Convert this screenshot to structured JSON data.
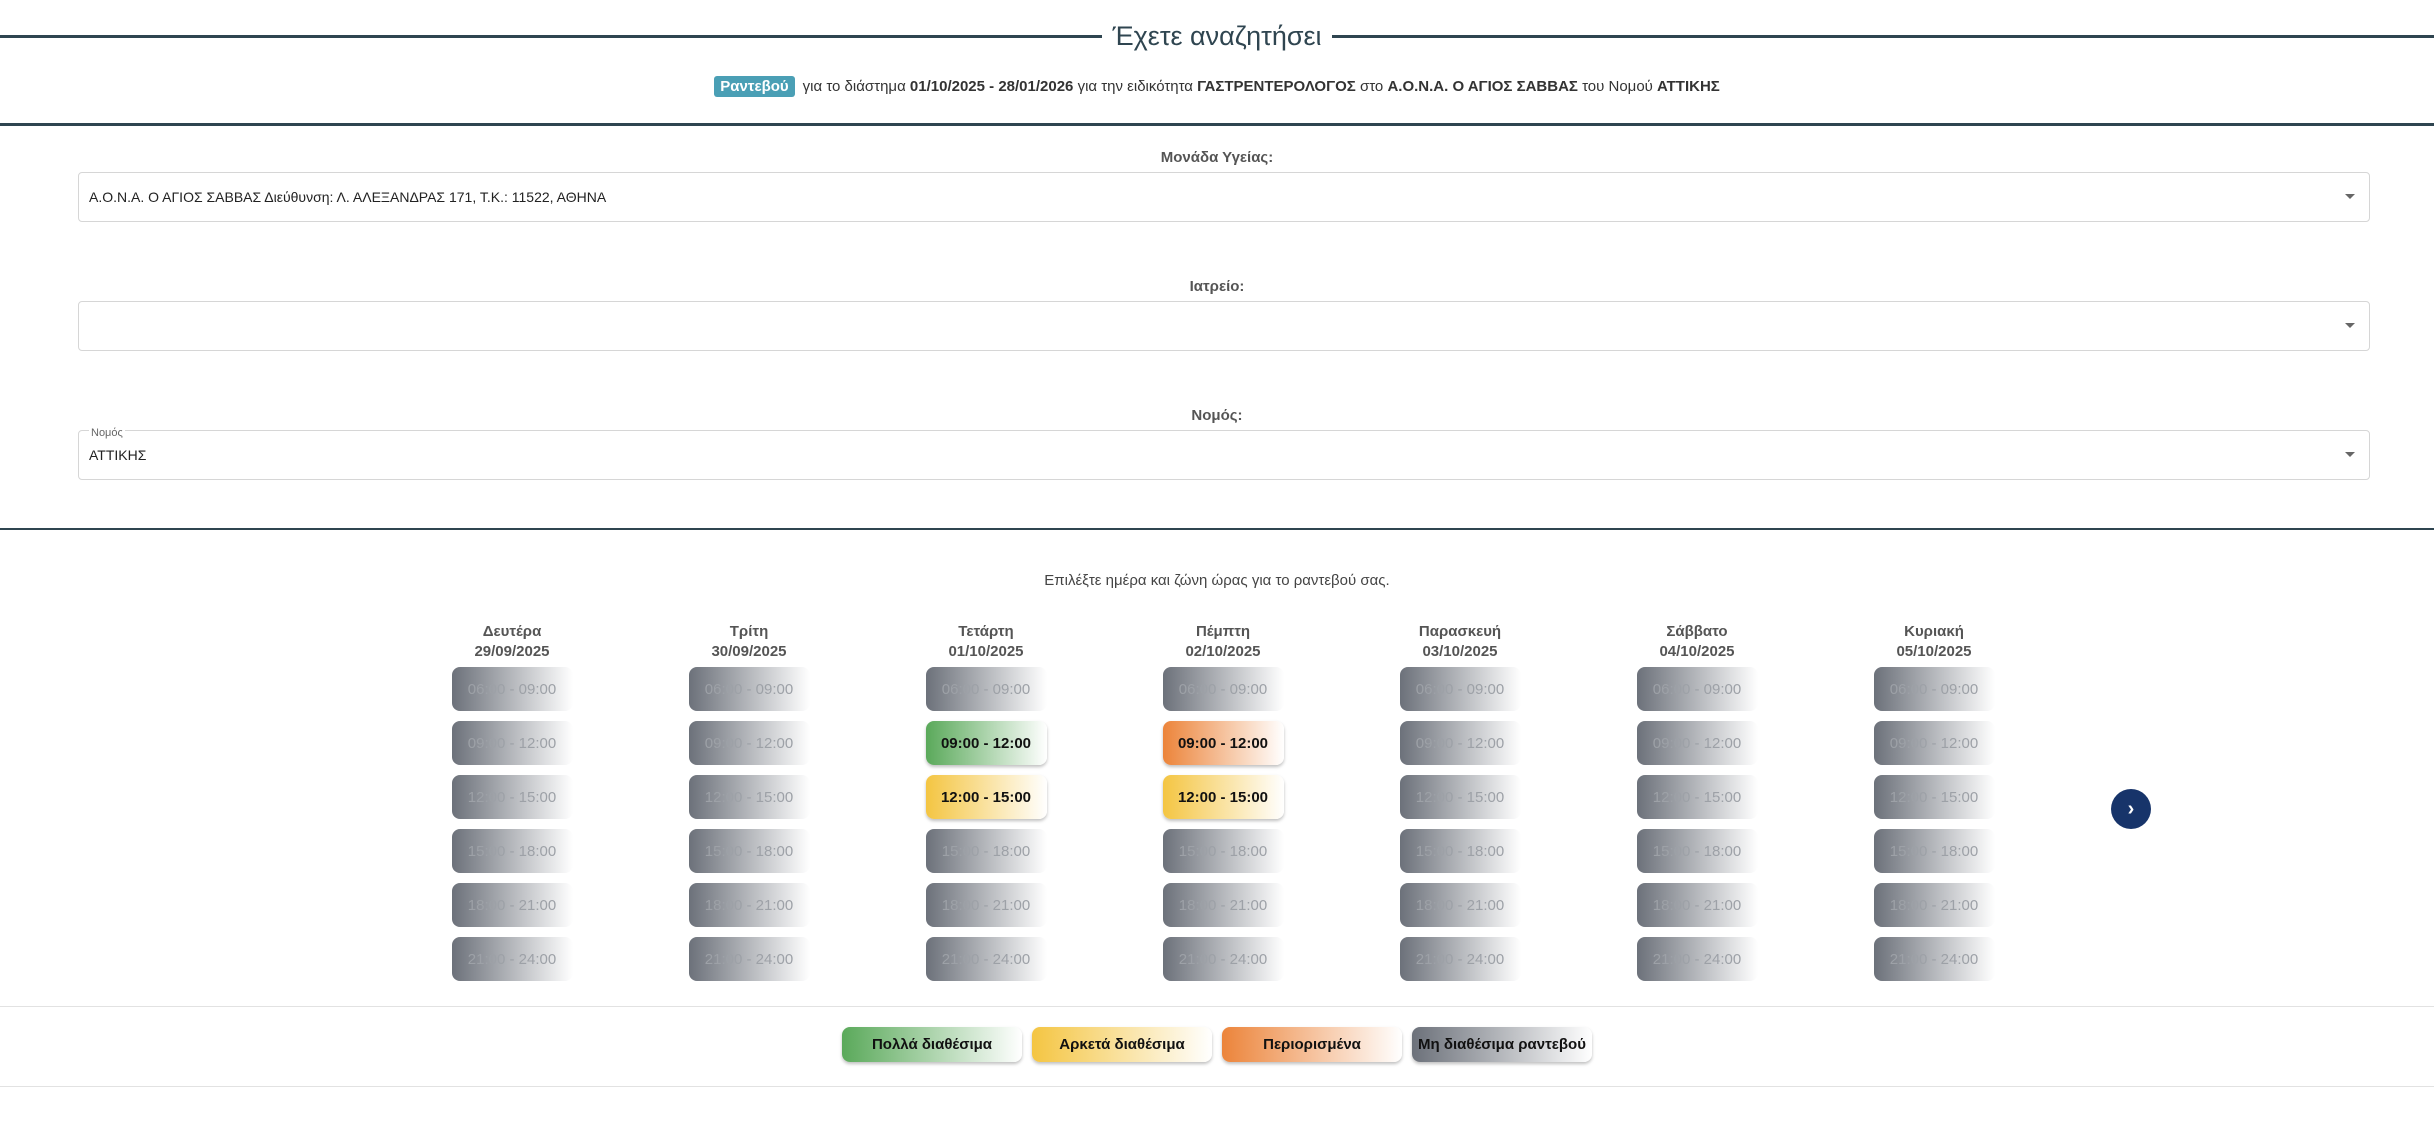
{
  "header": {
    "title": "Έχετε αναζητήσει",
    "badge": "Ραντεβού",
    "summary_parts": [
      "για το διάστημα ",
      "01/10/2025 - 28/01/2026",
      " για την ειδικότητα ",
      "ΓΑΣΤΡΕΝΤΕΡΟΛΟΓΟΣ",
      " στο ",
      "Α.Ο.Ν.Α. Ο ΑΓΙΟΣ ΣΑΒΒΑΣ",
      " του Νομού ",
      "ΑΤΤΙΚΗΣ"
    ]
  },
  "filters": {
    "unit": {
      "label": "Μονάδα Υγείας:",
      "value": "Α.Ο.Ν.Α. Ο ΑΓΙΟΣ ΣΑΒΒΑΣ Διεύθυνση: Λ. ΑΛΕΞΑΝΔΡΑΣ 171, Τ.Κ.: 11522, ΑΘΗΝΑ"
    },
    "clinic": {
      "label": "Ιατρείο:",
      "value": ""
    },
    "prefecture": {
      "label": "Νομός:",
      "float_label": "Νομός",
      "value": "ΑΤΤΙΚΗΣ"
    }
  },
  "calendar": {
    "instruction": "Επιλέξτε ημέρα και ζώνη ώρας για το ραντεβού σας.",
    "slots": [
      "06:00 - 09:00",
      "09:00 - 12:00",
      "12:00 - 15:00",
      "15:00 - 18:00",
      "18:00 - 21:00",
      "21:00 - 24:00"
    ],
    "days": [
      {
        "name": "Δευτέρα",
        "date": "29/09/2025",
        "status": [
          "none",
          "none",
          "none",
          "none",
          "none",
          "none"
        ]
      },
      {
        "name": "Τρίτη",
        "date": "30/09/2025",
        "status": [
          "none",
          "none",
          "none",
          "none",
          "none",
          "none"
        ]
      },
      {
        "name": "Τετάρτη",
        "date": "01/10/2025",
        "status": [
          "none",
          "many",
          "enough",
          "none",
          "none",
          "none"
        ]
      },
      {
        "name": "Πέμπτη",
        "date": "02/10/2025",
        "status": [
          "none",
          "limited",
          "enough",
          "none",
          "none",
          "none"
        ]
      },
      {
        "name": "Παρασκευή",
        "date": "03/10/2025",
        "status": [
          "none",
          "none",
          "none",
          "none",
          "none",
          "none"
        ]
      },
      {
        "name": "Σάββατο",
        "date": "04/10/2025",
        "status": [
          "none",
          "none",
          "none",
          "none",
          "none",
          "none"
        ]
      },
      {
        "name": "Κυριακή",
        "date": "05/10/2025",
        "status": [
          "none",
          "none",
          "none",
          "none",
          "none",
          "none"
        ]
      }
    ],
    "next_icon": "chevron-right-icon"
  },
  "legend": [
    {
      "key": "many",
      "label": "Πολλά διαθέσιμα",
      "color": "#5aa95a"
    },
    {
      "key": "enough",
      "label": "Αρκετά διαθέσιμα",
      "color": "#f4c542"
    },
    {
      "key": "limited",
      "label": "Περιορισμένα",
      "color": "#ec843a"
    },
    {
      "key": "none",
      "label": "Μη διαθέσιμα ραντεβού",
      "color": "#6c717a"
    }
  ]
}
